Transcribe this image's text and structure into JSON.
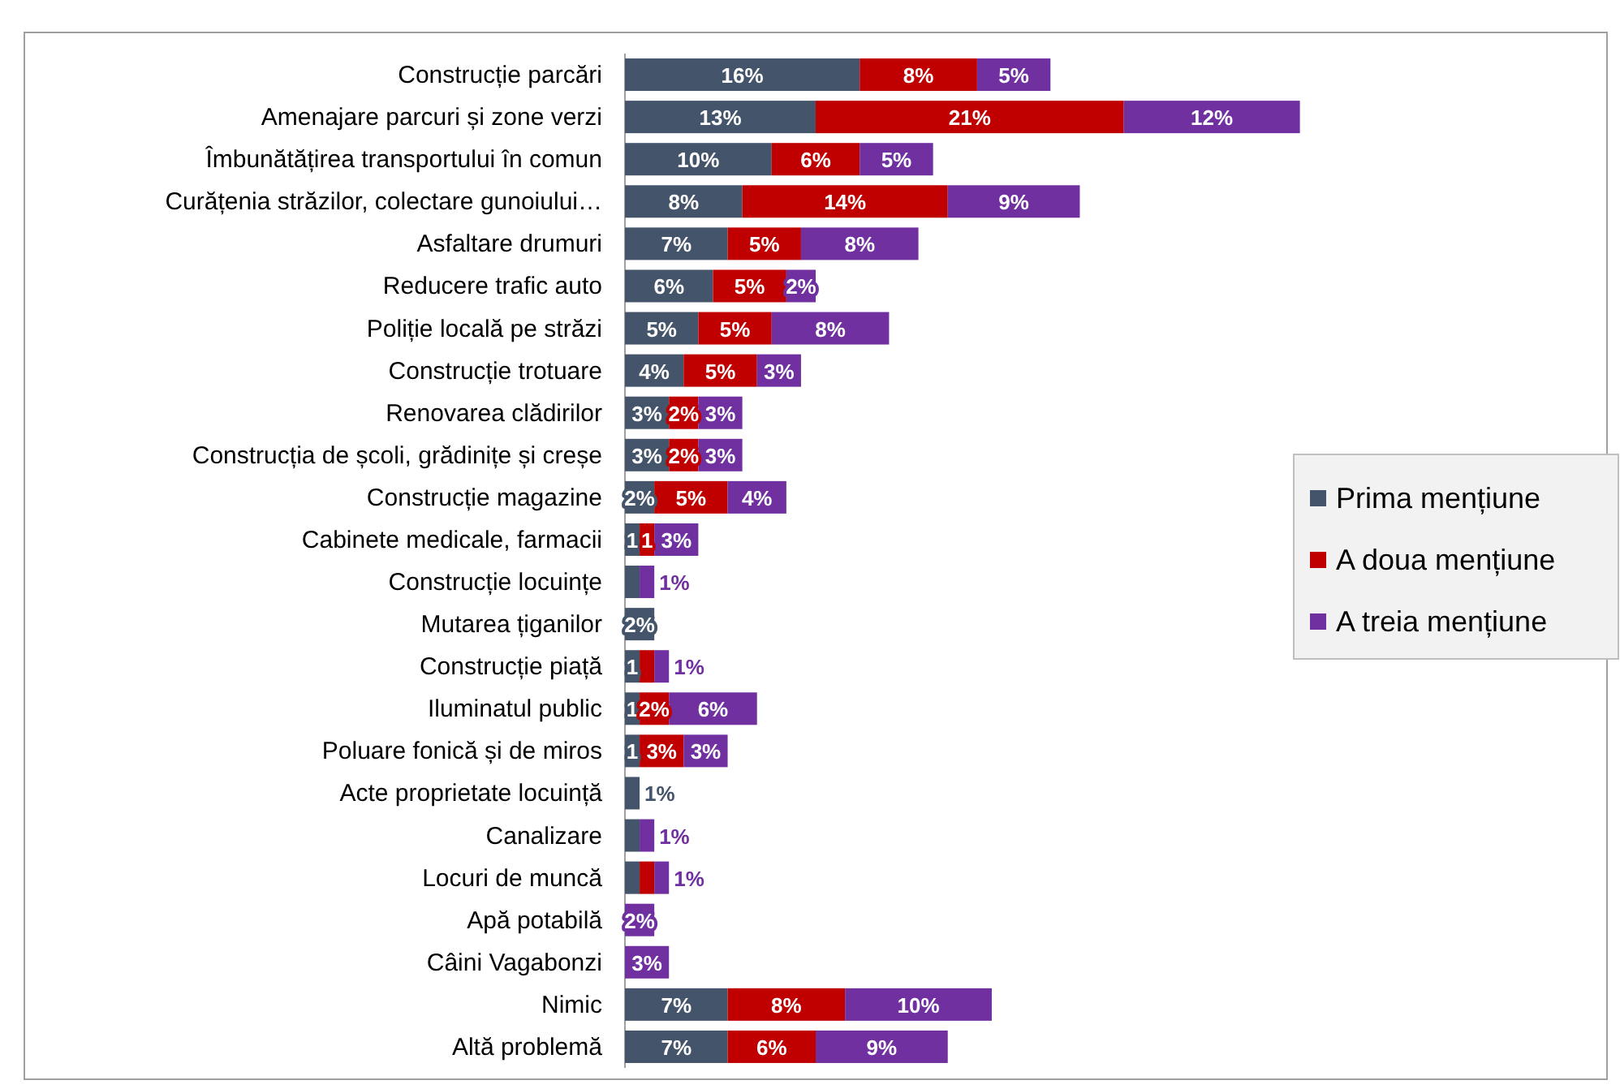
{
  "chart_data": {
    "type": "bar",
    "orientation": "horizontal",
    "stacked": true,
    "legend": "right",
    "tick_labels": "y",
    "categories": [
      "Construcție parcări",
      "Amenajare parcuri și zone verzi",
      "Îmbunătățirea transportului în comun",
      "Curățenia străzilor, colectare gunoiului…",
      "Asfaltare drumuri",
      "Reducere trafic auto",
      "Poliție locală pe străzi",
      "Construcție trotuare",
      "Renovarea clădirilor",
      "Construcția de școli, grădinițe și creșe",
      "Construcție magazine",
      "Cabinete medicale, farmacii",
      "Construcție locuințe",
      "Mutarea țiganilor",
      "Construcție piață",
      "Iluminatul public",
      "Poluare fonică și de miros",
      "Acte proprietate locuință",
      "Canalizare",
      "Locuri de muncă",
      "Apă potabilă",
      "Câini Vagabonzi",
      "Nimic",
      "Altă problemă"
    ],
    "series": [
      {
        "name": "Prima mențiune",
        "color": "#44546a",
        "values": [
          16,
          13,
          10,
          8,
          7,
          6,
          5,
          4,
          3,
          3,
          2,
          1,
          1,
          2,
          1,
          1,
          1,
          1,
          1,
          1,
          null,
          null,
          7,
          7
        ],
        "value_labels": [
          "16%",
          "13%",
          "10%",
          "8%",
          "7%",
          "6%",
          "5%",
          "4%",
          "3%",
          "3%",
          "2%",
          "1",
          null,
          "2%",
          "1",
          "1",
          "1",
          "1%",
          null,
          null,
          null,
          null,
          "7%",
          "7%"
        ]
      },
      {
        "name": "A doua mențiune",
        "color": "#c00000",
        "values": [
          8,
          21,
          6,
          14,
          5,
          5,
          5,
          5,
          2,
          2,
          5,
          1,
          null,
          null,
          1,
          2,
          3,
          null,
          null,
          1,
          null,
          null,
          8,
          6
        ],
        "value_labels": [
          "8%",
          "21%",
          "6%",
          "14%",
          "5%",
          "5%",
          "5%",
          "5%",
          "2%",
          "2%",
          "5%",
          "1",
          null,
          null,
          null,
          "2%",
          "3%",
          null,
          null,
          null,
          null,
          null,
          "8%",
          "6%"
        ]
      },
      {
        "name": "A treia mențiune",
        "color": "#7030a0",
        "values": [
          5,
          12,
          5,
          9,
          8,
          2,
          8,
          3,
          3,
          3,
          4,
          3,
          1,
          null,
          1,
          6,
          3,
          null,
          1,
          1,
          2,
          3,
          10,
          9
        ],
        "value_labels": [
          "5%",
          "12%",
          "5%",
          "9%",
          "8%",
          "2%",
          "8%",
          "3%",
          "3%",
          "3%",
          "4%",
          "3%",
          "1%",
          null,
          "1%",
          "6%",
          "3%",
          null,
          "1%",
          "1%",
          "2%",
          "3%",
          "10%",
          "9%"
        ]
      }
    ]
  }
}
